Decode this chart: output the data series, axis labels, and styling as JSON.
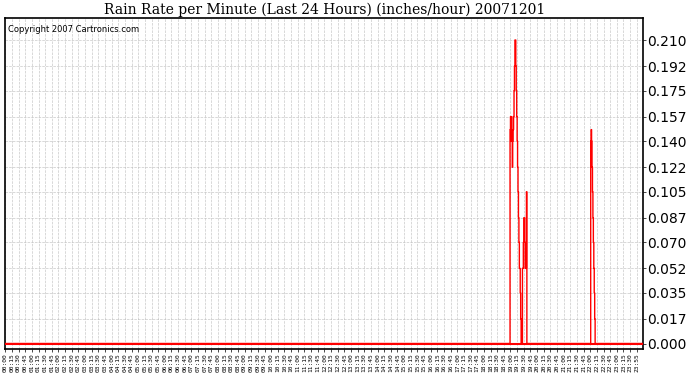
{
  "title": "Rain Rate per Minute (Last 24 Hours) (inches/hour) 20071201",
  "copyright_text": "Copyright 2007 Cartronics.com",
  "line_color": "#ff0000",
  "bg_color": "#ffffff",
  "grid_color": "#bbbbbb",
  "y_ticks": [
    0.0,
    0.017,
    0.035,
    0.052,
    0.07,
    0.087,
    0.105,
    0.122,
    0.14,
    0.157,
    0.175,
    0.192,
    0.21
  ],
  "x_tick_labels": [
    "00:00",
    "00:15",
    "00:30",
    "00:45",
    "01:00",
    "01:15",
    "01:30",
    "01:45",
    "02:00",
    "02:15",
    "02:30",
    "02:45",
    "03:00",
    "03:15",
    "03:30",
    "03:45",
    "04:00",
    "04:15",
    "04:30",
    "04:45",
    "05:00",
    "05:15",
    "05:30",
    "05:45",
    "06:00",
    "06:15",
    "06:30",
    "06:45",
    "07:00",
    "07:15",
    "07:30",
    "07:45",
    "08:00",
    "08:15",
    "08:30",
    "08:45",
    "09:00",
    "09:15",
    "09:30",
    "09:45",
    "10:00",
    "10:15",
    "10:30",
    "10:45",
    "11:00",
    "11:15",
    "11:30",
    "11:45",
    "12:00",
    "12:15",
    "12:30",
    "12:45",
    "13:00",
    "13:15",
    "13:30",
    "13:45",
    "14:00",
    "14:15",
    "14:30",
    "14:45",
    "15:00",
    "15:15",
    "15:30",
    "15:45",
    "16:00",
    "16:15",
    "16:30",
    "16:45",
    "17:00",
    "17:15",
    "17:30",
    "17:45",
    "18:00",
    "18:15",
    "18:30",
    "18:45",
    "19:00",
    "19:15",
    "19:30",
    "19:45",
    "20:00",
    "20:15",
    "20:30",
    "20:45",
    "21:00",
    "21:15",
    "21:30",
    "21:45",
    "22:00",
    "22:15",
    "22:30",
    "22:45",
    "23:00",
    "23:15",
    "23:30",
    "23:55"
  ],
  "rain_data_minutes": [
    [
      0,
      0.0
    ],
    [
      1138,
      0.0
    ],
    [
      1139,
      0.148
    ],
    [
      1140,
      0.157
    ],
    [
      1141,
      0.14
    ],
    [
      1142,
      0.157
    ],
    [
      1143,
      0.14
    ],
    [
      1144,
      0.122
    ],
    [
      1145,
      0.14
    ],
    [
      1146,
      0.148
    ],
    [
      1147,
      0.157
    ],
    [
      1148,
      0.175
    ],
    [
      1149,
      0.192
    ],
    [
      1150,
      0.21
    ],
    [
      1151,
      0.21
    ],
    [
      1152,
      0.192
    ],
    [
      1153,
      0.175
    ],
    [
      1154,
      0.157
    ],
    [
      1155,
      0.14
    ],
    [
      1156,
      0.122
    ],
    [
      1157,
      0.105
    ],
    [
      1158,
      0.087
    ],
    [
      1159,
      0.07
    ],
    [
      1160,
      0.052
    ],
    [
      1161,
      0.052
    ],
    [
      1162,
      0.035
    ],
    [
      1163,
      0.017
    ],
    [
      1164,
      0.0
    ],
    [
      1165,
      0.0
    ],
    [
      1166,
      0.0
    ],
    [
      1167,
      0.052
    ],
    [
      1168,
      0.052
    ],
    [
      1169,
      0.07
    ],
    [
      1170,
      0.087
    ],
    [
      1171,
      0.087
    ],
    [
      1172,
      0.07
    ],
    [
      1173,
      0.052
    ],
    [
      1174,
      0.052
    ],
    [
      1175,
      0.052
    ],
    [
      1176,
      0.105
    ],
    [
      1177,
      0.0
    ],
    [
      1178,
      0.0
    ],
    [
      1179,
      0.0
    ],
    [
      1180,
      0.0
    ],
    [
      1320,
      0.0
    ],
    [
      1321,
      0.14
    ],
    [
      1322,
      0.148
    ],
    [
      1323,
      0.14
    ],
    [
      1324,
      0.122
    ],
    [
      1325,
      0.105
    ],
    [
      1326,
      0.087
    ],
    [
      1327,
      0.07
    ],
    [
      1328,
      0.052
    ],
    [
      1329,
      0.035
    ],
    [
      1330,
      0.017
    ],
    [
      1331,
      0.0
    ],
    [
      1332,
      0.0
    ],
    [
      1439,
      0.0
    ]
  ],
  "ylim_max": 0.225,
  "n_minutes": 1440
}
